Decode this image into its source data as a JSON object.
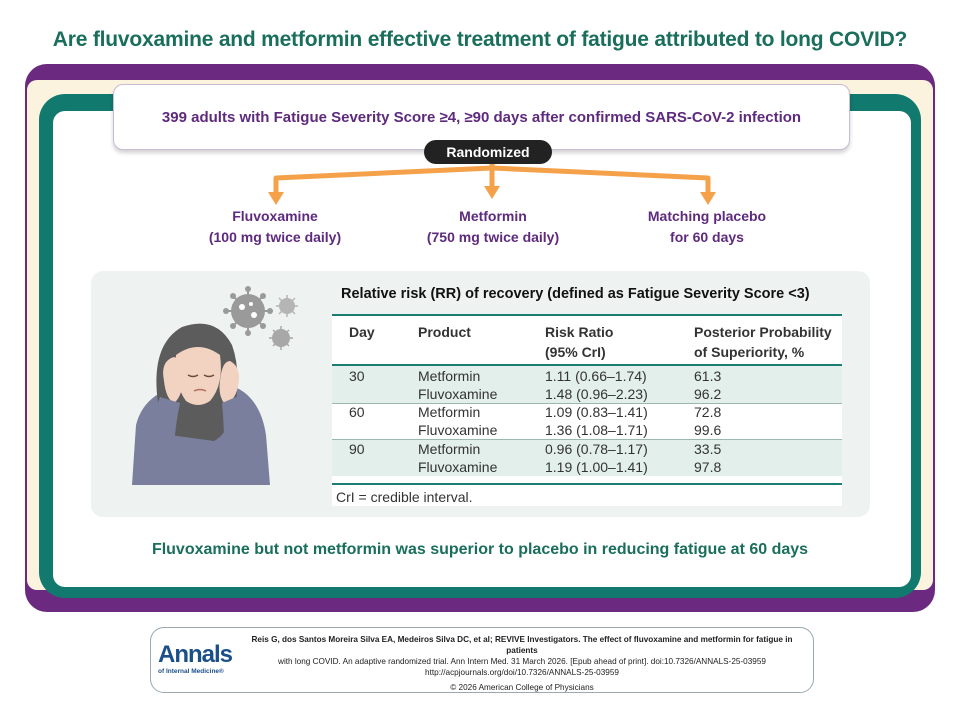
{
  "header": {
    "title": "Are fluvoxamine and metformin effective treatment of fatigue attributed to long COVID?"
  },
  "population": "399 adults with Fatigue Severity Score ≥4, ≥90 days after confirmed SARS-CoV-2 infection",
  "randomized_label": "Randomized",
  "arms": [
    {
      "name": "Fluvoxamine",
      "detail": "(100 mg twice daily)"
    },
    {
      "name": "Metformin",
      "detail": "(750 mg twice daily)"
    },
    {
      "name": "Matching placebo",
      "detail": "for 60 days"
    }
  ],
  "table": {
    "title": "Relative risk (RR) of recovery (defined as Fatigue Severity Score <3)",
    "headers": {
      "day": "Day",
      "product": "Product",
      "ratio_1": "Risk Ratio",
      "ratio_2": "(95% CrI)",
      "prob_1": "Posterior Probability",
      "prob_2": "of Superiority, %"
    },
    "rows": [
      {
        "day": "30",
        "product": "Metformin",
        "ratio": "1.11 (0.66–1.74)",
        "prob": "61.3"
      },
      {
        "day": "",
        "product": "Fluvoxamine",
        "ratio": "1.48 (0.96–2.23)",
        "prob": "96.2"
      },
      {
        "day": "60",
        "product": "Metformin",
        "ratio": "1.09 (0.83–1.41)",
        "prob": "72.8"
      },
      {
        "day": "",
        "product": "Fluvoxamine",
        "ratio": "1.36 (1.08–1.71)",
        "prob": "99.6"
      },
      {
        "day": "90",
        "product": "Metformin",
        "ratio": "0.96 (0.78–1.17)",
        "prob": "33.5"
      },
      {
        "day": "",
        "product": "Fluvoxamine",
        "ratio": "1.19 (1.00–1.41)",
        "prob": "97.8"
      }
    ],
    "footnote": "CrI = credible interval."
  },
  "conclusion": "Fluvoxamine but not metformin was superior to placebo in reducing fatigue at 60 days",
  "footer": {
    "logo_main": "Annals",
    "logo_sub": "of Internal Medicine®",
    "citation_1": "Reis G, dos Santos Moreira Silva EA, Medeiros Silva DC, et al; REVIVE Investigators. The effect of fluvoxamine and metformin for fatigue in patients",
    "citation_2": "with long COVID. An adaptive randomized trial. Ann Intern Med. 31 March 2026. [Epub ahead of print]. doi:10.7326/ANNALS-25-03959",
    "citation_3": "http://acpjournals.org/doi/10.7326/ANNALS-25-03959",
    "copyright": "© 2026 American College of Physicians"
  },
  "colors": {
    "purple": "#6b2a80",
    "teal": "#12796f",
    "orange_arrow": "#f5a14a",
    "title_green": "#1a6e5c"
  }
}
